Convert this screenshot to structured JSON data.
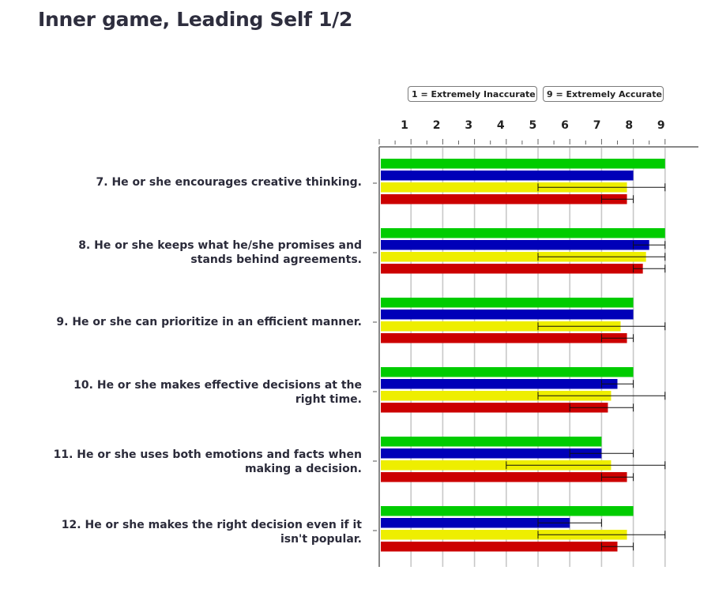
{
  "title": "Inner game, Leading Self 1/2",
  "legend": {
    "left": "1 = Extremely Inaccurate",
    "right": "9 = Extremely Accurate"
  },
  "colors": {
    "green": "#00cc00",
    "blue": "#0000b8",
    "yellow": "#eeee00",
    "red": "#cc0000",
    "grid": "#c8c8c8",
    "axis": "#888888"
  },
  "chart_data": {
    "type": "bar",
    "orientation": "horizontal",
    "title": "Inner game, Leading Self 1/2",
    "xlim": [
      0,
      9
    ],
    "x_ticks": [
      "1",
      "2",
      "3",
      "4",
      "5",
      "6",
      "7",
      "8",
      "9"
    ],
    "categories": [
      "7. He or she encourages creative thinking.",
      "8. He or she keeps what he/she promises and stands behind agreements.",
      "9. He or she can prioritize in an efficient manner.",
      "10. He or she makes effective decisions at the right time.",
      "11. He or she uses both emotions and facts when making a decision.",
      "12. He or she makes the right decision even if it isn't popular."
    ],
    "series": [
      {
        "color": "green",
        "values": [
          9.0,
          9.0,
          8.0,
          8.0,
          7.0,
          8.0
        ],
        "err_low": [
          null,
          null,
          null,
          null,
          null,
          null
        ],
        "err_high": [
          null,
          null,
          null,
          null,
          null,
          null
        ]
      },
      {
        "color": "blue",
        "values": [
          8.0,
          8.5,
          8.0,
          7.5,
          7.0,
          6.0
        ],
        "err_low": [
          null,
          8.0,
          null,
          7.0,
          6.0,
          5.0
        ],
        "err_high": [
          null,
          9.0,
          null,
          8.0,
          8.0,
          7.0
        ]
      },
      {
        "color": "yellow",
        "values": [
          7.8,
          8.4,
          7.6,
          7.3,
          7.3,
          7.8
        ],
        "err_low": [
          5.0,
          5.0,
          5.0,
          5.0,
          4.0,
          5.0
        ],
        "err_high": [
          9.0,
          9.0,
          9.0,
          9.0,
          9.0,
          9.0
        ]
      },
      {
        "color": "red",
        "values": [
          7.8,
          8.3,
          7.8,
          7.2,
          7.8,
          7.5
        ],
        "err_low": [
          7.0,
          8.0,
          7.0,
          6.0,
          7.0,
          7.0
        ],
        "err_high": [
          8.0,
          9.0,
          8.0,
          8.0,
          8.0,
          8.0
        ]
      }
    ],
    "grid": true,
    "legend_position": "top"
  },
  "labels": [
    [
      "7. He or she encourages creative thinking."
    ],
    [
      "8. He or she keeps what he/she promises and",
      "stands behind agreements."
    ],
    [
      "9. He or she can prioritize in an efficient manner."
    ],
    [
      "10. He or she makes effective decisions at the",
      "right time."
    ],
    [
      "11. He or she uses both emotions and facts when",
      "making a decision."
    ],
    [
      "12. He or she makes the right decision even if it",
      "isn't popular."
    ]
  ]
}
